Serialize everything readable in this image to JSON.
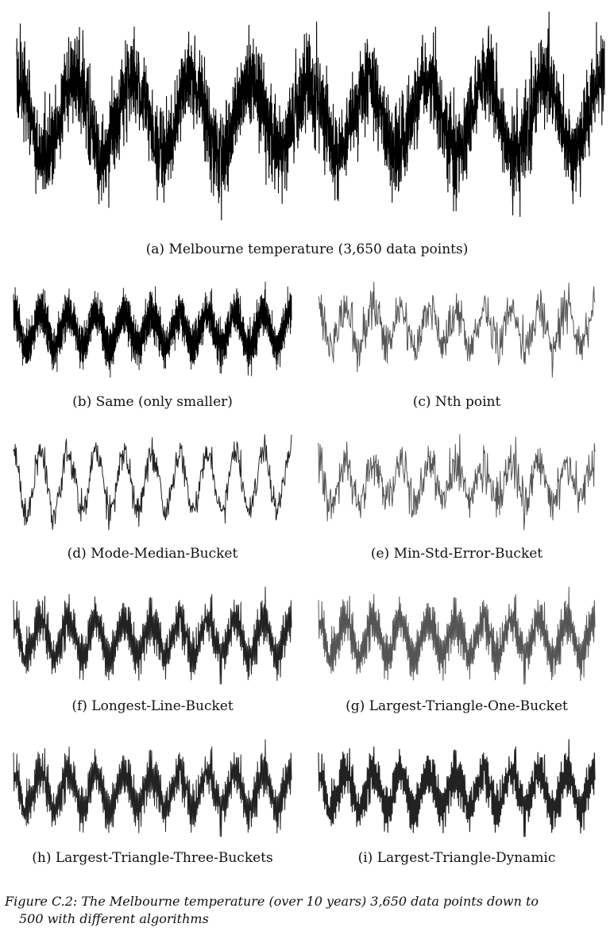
{
  "panels": [
    {
      "id": "a",
      "caption": "(a) Melbourne temperature (3,650 data points)",
      "algorithm": "original",
      "points": 3650
    },
    {
      "id": "b",
      "caption": "(b) Same (only smaller)",
      "algorithm": "original",
      "points": 3650
    },
    {
      "id": "c",
      "caption": "(c) Nth point",
      "algorithm": "nth-point",
      "points": 500
    },
    {
      "id": "d",
      "caption": "(d) Mode-Median-Bucket",
      "algorithm": "mode-median-bucket",
      "points": 500
    },
    {
      "id": "e",
      "caption": "(e) Min-Std-Error-Bucket",
      "algorithm": "min-std-error-bucket",
      "points": 500
    },
    {
      "id": "f",
      "caption": "(f) Longest-Line-Bucket",
      "algorithm": "longest-line-bucket",
      "points": 500
    },
    {
      "id": "g",
      "caption": "(g) Largest-Triangle-One-Bucket",
      "algorithm": "largest-triangle-one-bucket",
      "points": 500
    },
    {
      "id": "h",
      "caption": "(h) Largest-Triangle-Three-Buckets",
      "algorithm": "largest-triangle-three-buckets",
      "points": 500
    },
    {
      "id": "i",
      "caption": "(i) Largest-Triangle-Dynamic",
      "algorithm": "largest-triangle-dynamic",
      "points": 500
    }
  ],
  "figure_caption": {
    "line1": "Figure C.2: The Melbourne temperature (over 10 years) 3,650 data points down to",
    "line2": "500 with different algorithms"
  },
  "colors": {
    "original": "#000000",
    "downsampled": "#222222",
    "nth": "#555555"
  }
}
